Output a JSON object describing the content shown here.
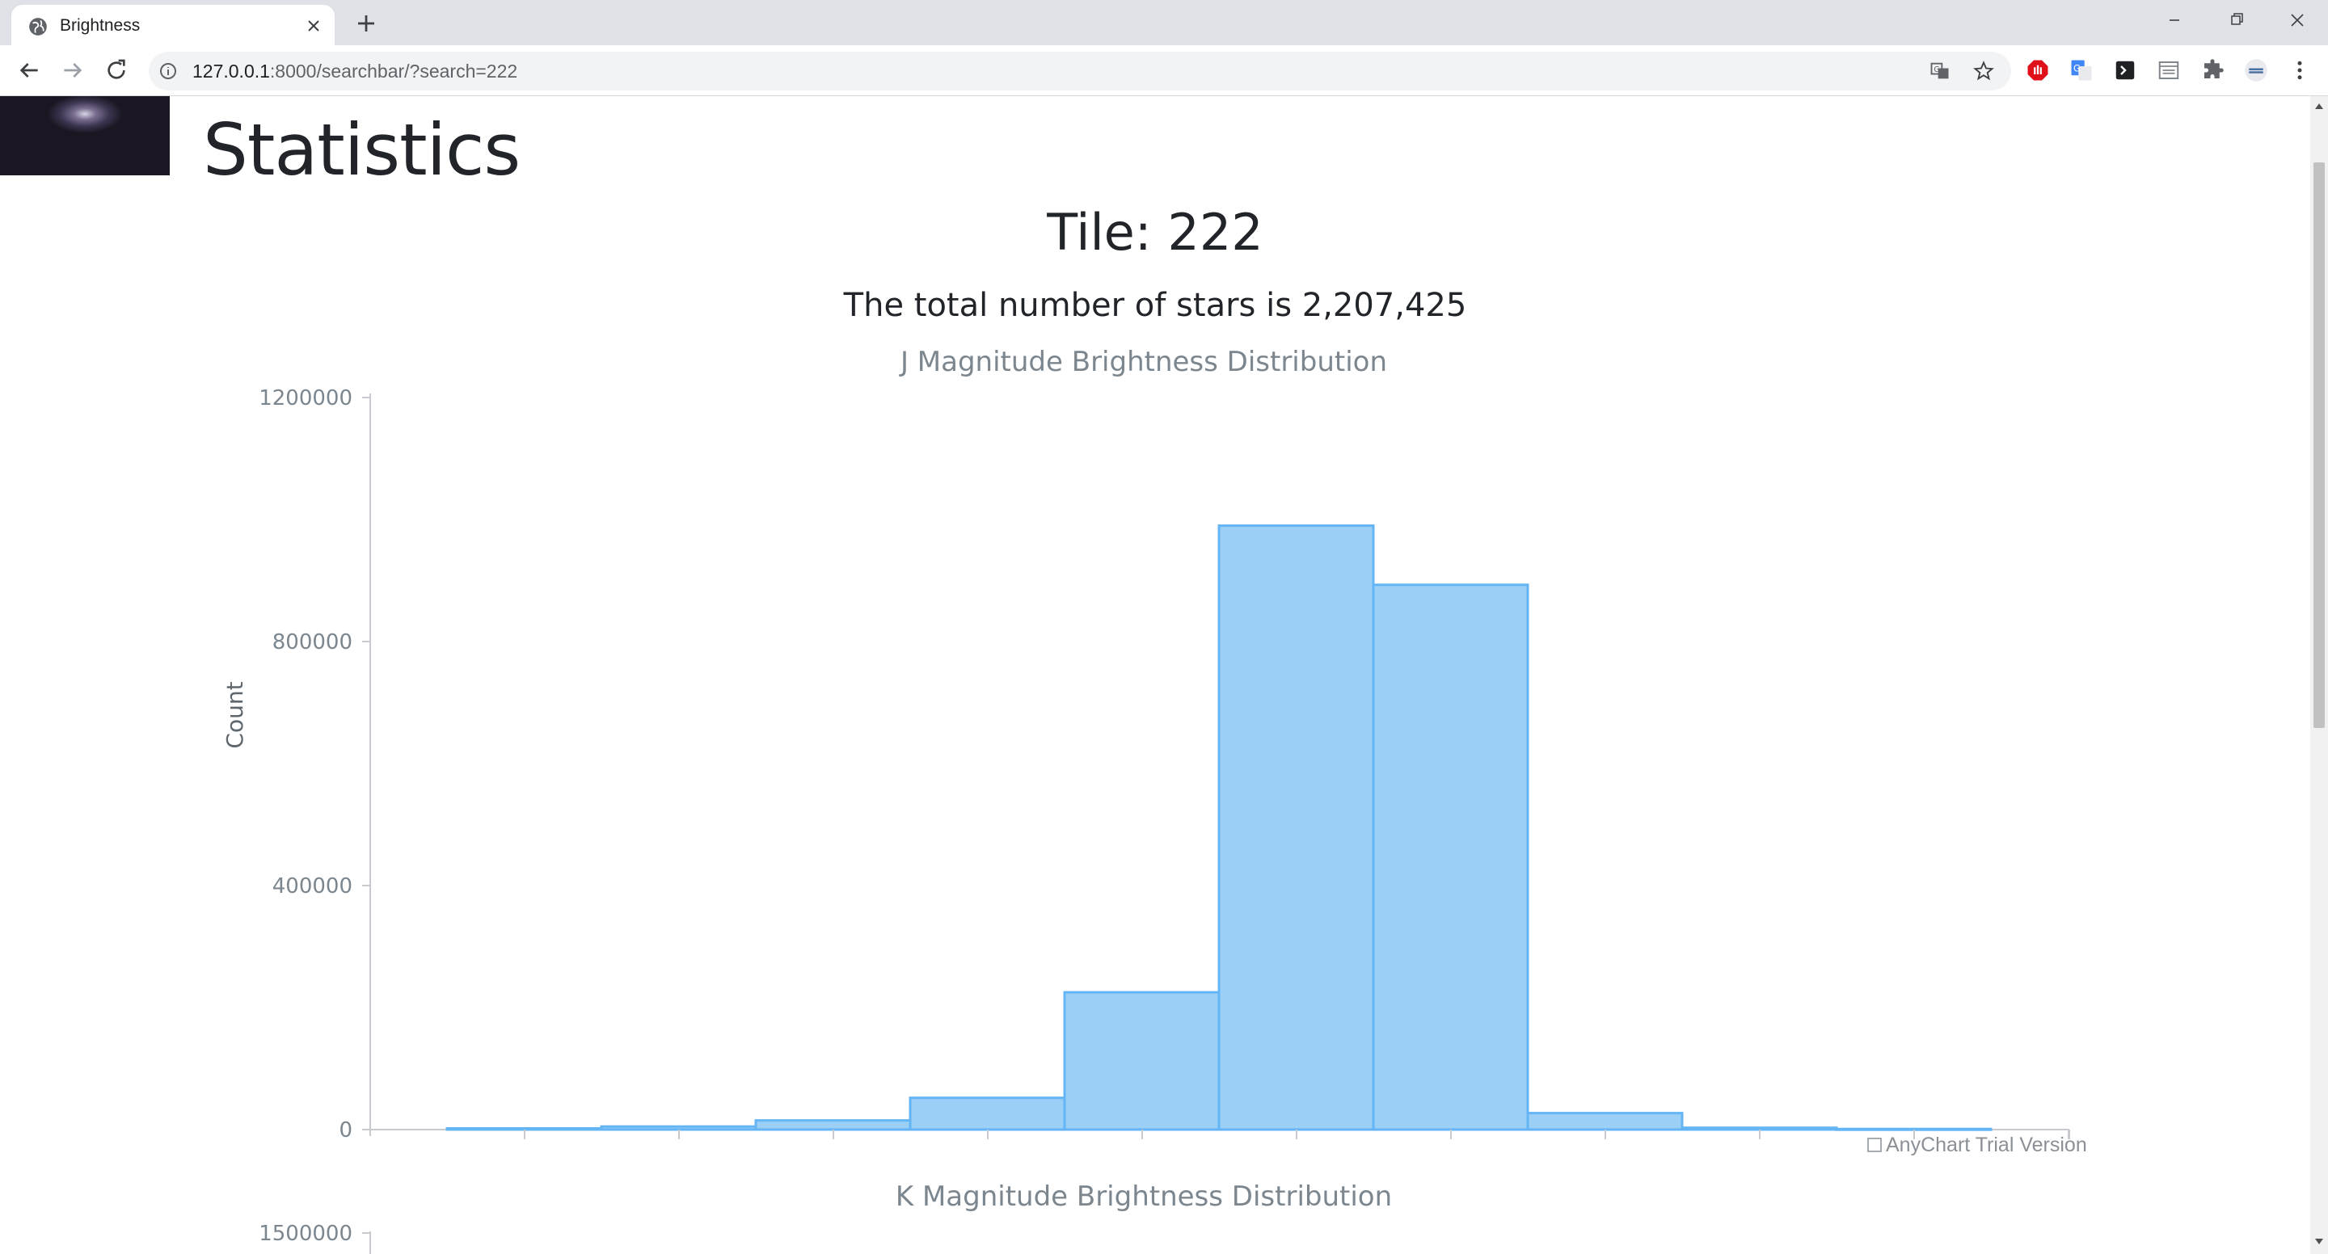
{
  "browser": {
    "tab_title": "Brightness",
    "url_host": "127.0.0.1",
    "url_rest": ":8000/searchbar/?search=222"
  },
  "page": {
    "title": "Statistics",
    "tile_heading": "Tile: 222",
    "stars_total": "The total number of stars is 2,207,425"
  },
  "colors": {
    "bar_fill": "#9ccff6",
    "bar_stroke": "#64b5f6",
    "axis_text": "#7c868e",
    "heading_text": "#212529"
  },
  "chart_data": [
    {
      "type": "bar",
      "title": "J Magnitude Brightness Distribution",
      "xlabel": "",
      "ylabel": "Count",
      "ylim": [
        0,
        1200000
      ],
      "yticks": [
        "1200000",
        "800000",
        "400000",
        "0"
      ],
      "categories": [
        "",
        "",
        "",
        "",
        "",
        "",
        "",
        "",
        "",
        "",
        ""
      ],
      "values": [
        2000,
        5000,
        15000,
        52000,
        225000,
        990000,
        893000,
        27000,
        3000,
        1000,
        0
      ],
      "credit": "AnyChart Trial Version"
    },
    {
      "type": "bar",
      "title": "K Magnitude Brightness Distribution",
      "xlabel": "",
      "ylabel": "",
      "ylim": [
        0,
        1500000
      ],
      "yticks": [
        "1500000"
      ],
      "categories": [],
      "values": []
    }
  ]
}
